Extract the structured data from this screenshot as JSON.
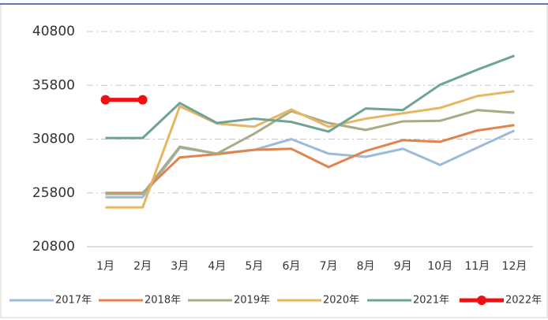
{
  "chart_data": {
    "type": "line",
    "categories": [
      "1月",
      "2月",
      "3月",
      "4月",
      "5月",
      "6月",
      "7月",
      "8月",
      "9月",
      "10月",
      "11月",
      "12月"
    ],
    "series": [
      {
        "name": "2017年",
        "color": "#9dbbd8",
        "values": [
          25400,
          25400,
          30000,
          29450,
          29800,
          30800,
          29450,
          29150,
          29900,
          28400,
          30000,
          31600
        ]
      },
      {
        "name": "2018年",
        "color": "#e0844f",
        "values": [
          25800,
          25800,
          29100,
          29400,
          29800,
          29900,
          28200,
          29700,
          30700,
          30550,
          31600,
          32100
        ]
      },
      {
        "name": "2019年",
        "color": "#a8ab84",
        "values": [
          25700,
          25700,
          30100,
          29450,
          31300,
          33400,
          32300,
          31650,
          32450,
          32500,
          33500,
          33250
        ]
      },
      {
        "name": "2020年",
        "color": "#e6b663",
        "values": [
          24450,
          24450,
          33850,
          32250,
          31950,
          33550,
          31950,
          32700,
          33200,
          33700,
          34800,
          35250
        ]
      },
      {
        "name": "2021年",
        "color": "#6ea397",
        "values": [
          30900,
          30900,
          34150,
          32300,
          32700,
          32400,
          31500,
          33650,
          33500,
          35850,
          37250,
          38550
        ]
      },
      {
        "name": "2022年",
        "color": "#ee1111",
        "marker": true,
        "values": [
          34450,
          34450,
          null,
          null,
          null,
          null,
          null,
          null,
          null,
          null,
          null,
          null
        ]
      }
    ],
    "ylim": [
      20800,
      40800
    ],
    "yticks": [
      20800,
      25800,
      30800,
      35800,
      40800
    ],
    "grid": true
  }
}
